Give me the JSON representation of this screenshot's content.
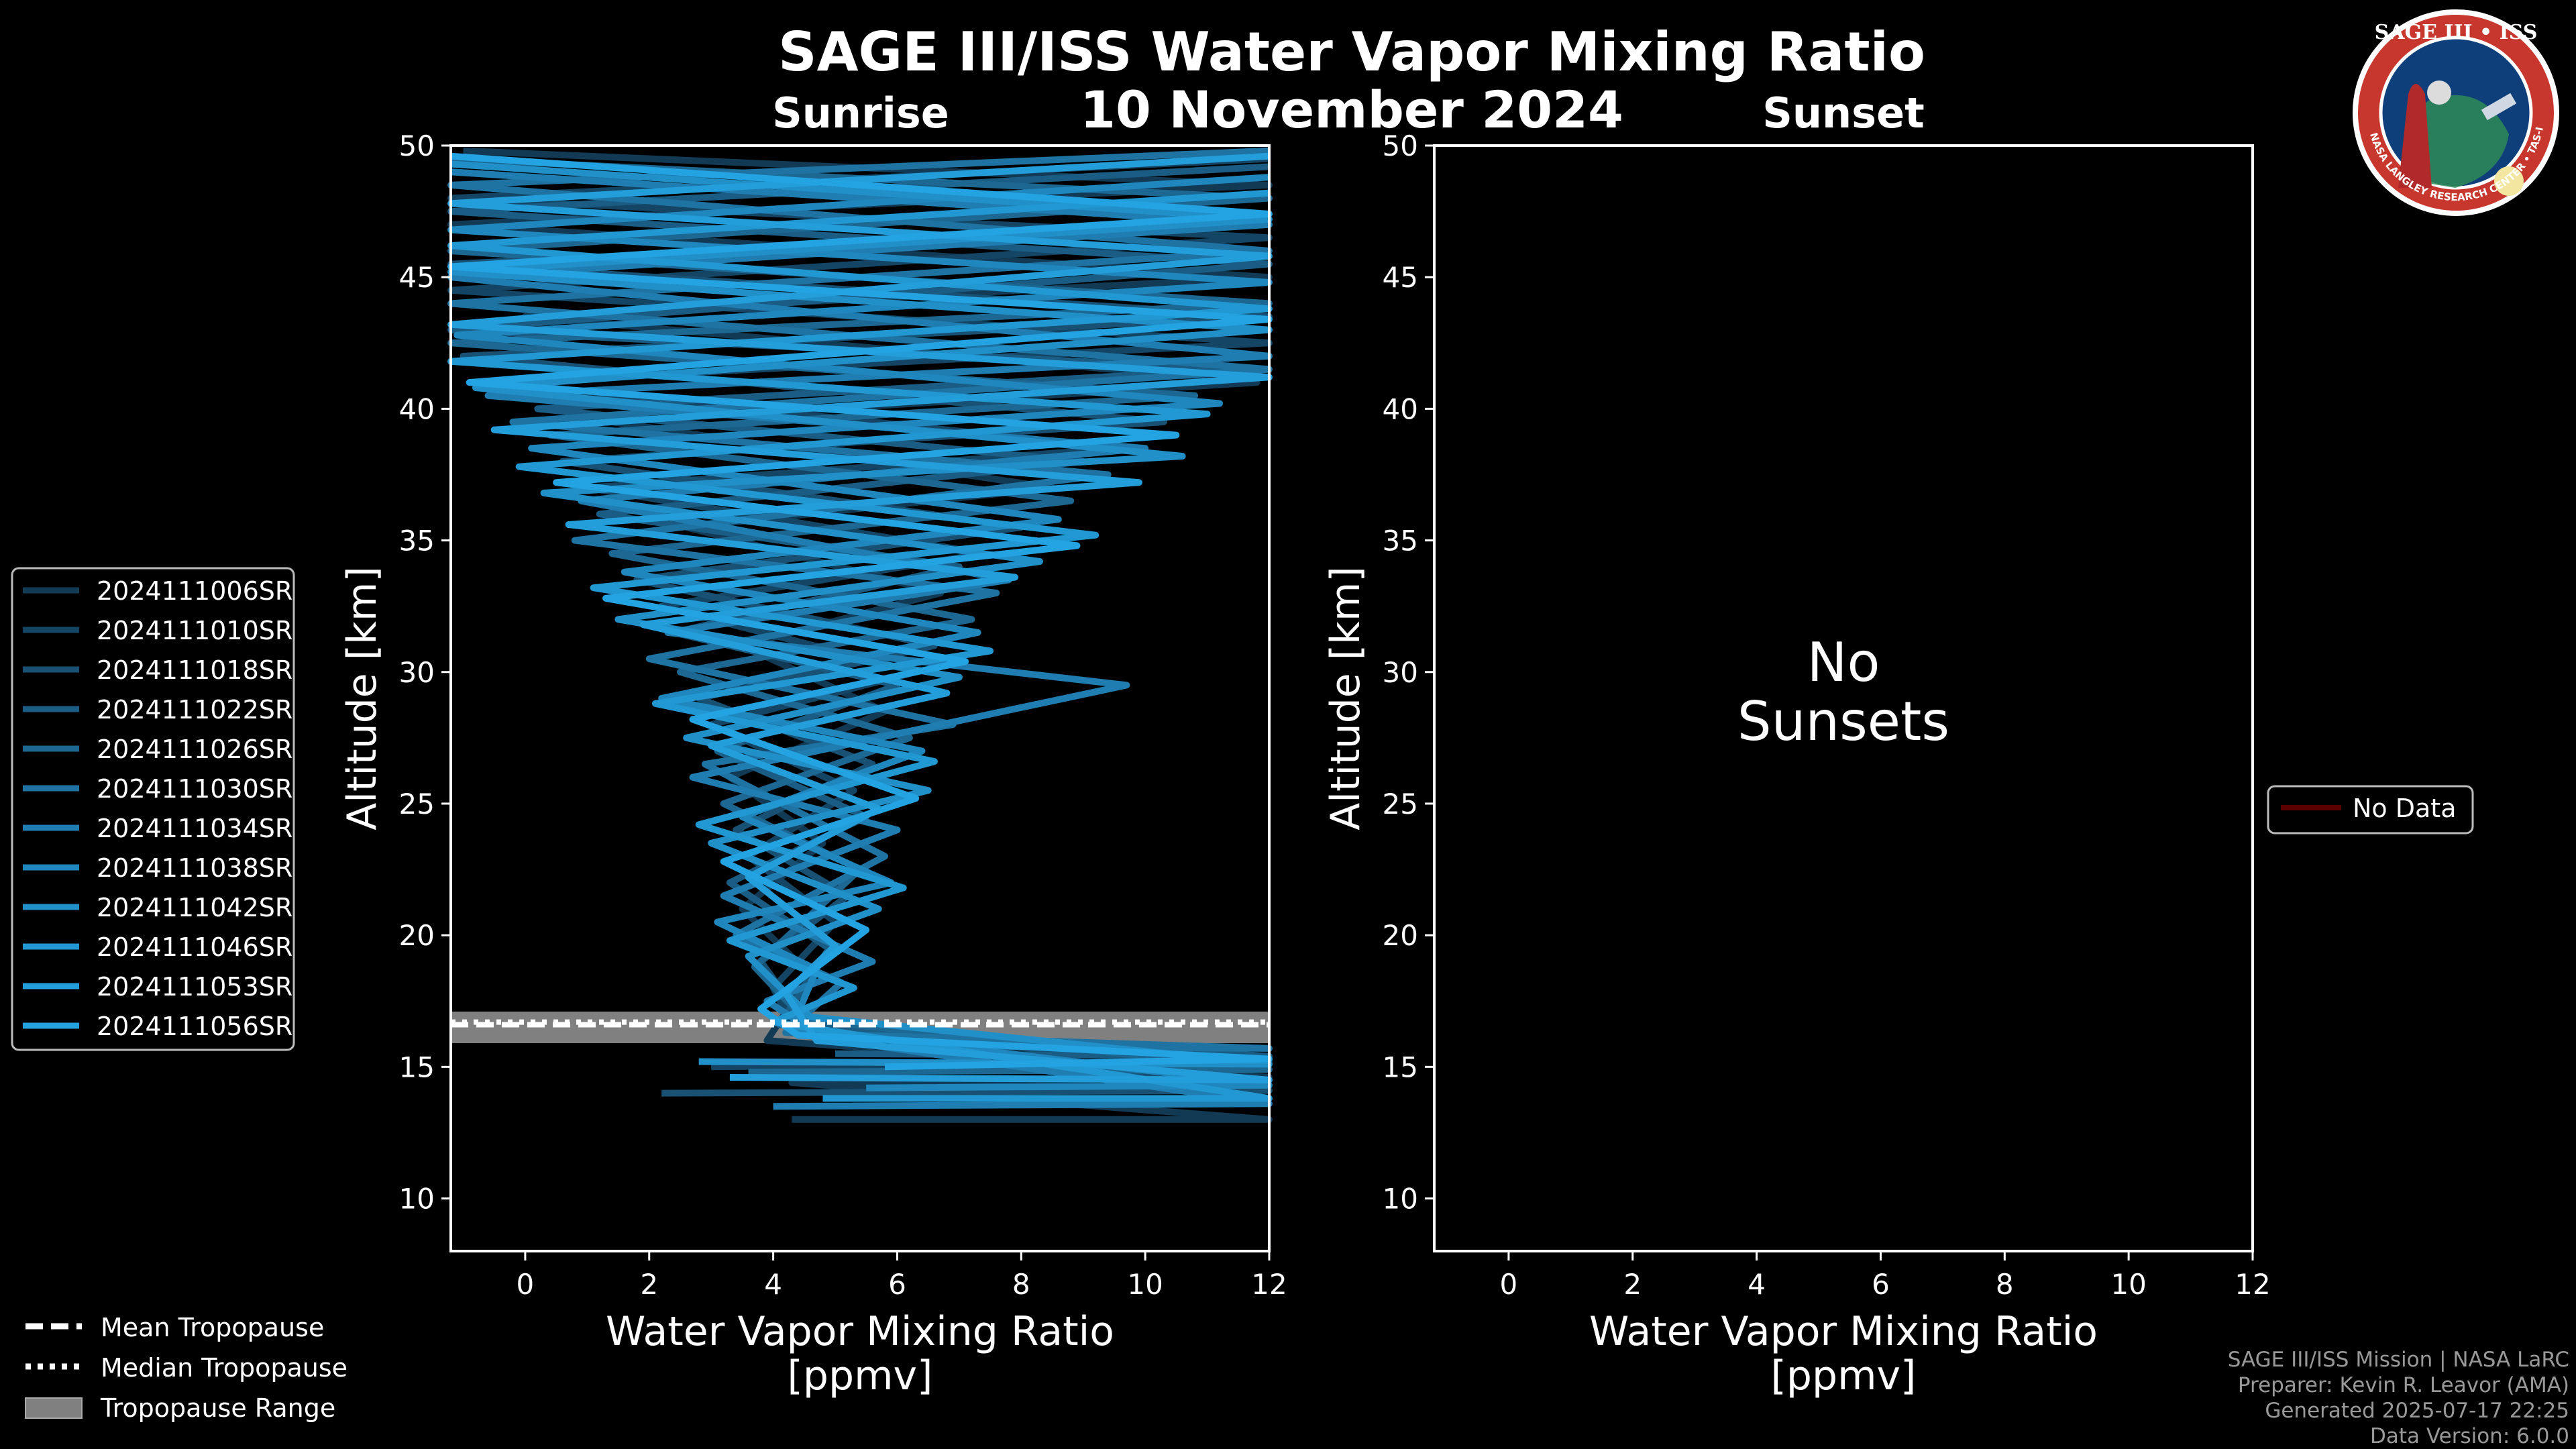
{
  "figure": {
    "title": "SAGE III/ISS Water Vapor Mixing Ratio",
    "date": "10 November 2024",
    "sunrise_label": "Sunrise",
    "sunset_label": "Sunset"
  },
  "logo": {
    "text_top": "SAGE III • ISS",
    "text_ring": "BALL • NASA LANGLEY RESEARCH CENTER • TAS-I • ESA",
    "colors": {
      "ring": "#c8372d",
      "inner": "#0f3f7a",
      "border": "#ffffff"
    }
  },
  "credits": [
    "SAGE III/ISS Mission | NASA LaRC",
    "Preparer: Kevin R. Leavor (AMA)",
    "Generated 2025-07-17 22:25",
    "Data Version: 6.0.0"
  ],
  "tropopause_legend": [
    {
      "label": "Mean Tropopause",
      "style": "dashed"
    },
    {
      "label": "Median Tropopause",
      "style": "dotted"
    },
    {
      "label": "Tropopause Range",
      "style": "patch"
    }
  ],
  "sunset_legend": [
    {
      "label": "No Data",
      "color": "#5a0000"
    }
  ],
  "chart_data": [
    {
      "type": "line",
      "panel": "sunrise",
      "xlabel": "Water Vapor Mixing Ratio\n[ppmv]",
      "ylabel": "Altitude [km]",
      "xlim": [
        -1.2,
        12
      ],
      "ylim": [
        8,
        50
      ],
      "xticks": [
        0,
        2,
        4,
        6,
        8,
        10,
        12
      ],
      "yticks": [
        10,
        15,
        20,
        25,
        30,
        35,
        40,
        45,
        50
      ],
      "tropopause": {
        "mean": 16.6,
        "median": 16.7,
        "range": [
          15.9,
          17.1
        ]
      },
      "series": [
        {
          "name": "2024111006SR",
          "color": "#123a55",
          "points": [
            [
              4.3,
              13.0
            ],
            [
              12,
              13.0
            ],
            [
              4.3,
              14.4
            ],
            [
              12,
              14.6
            ],
            [
              3.9,
              16.0
            ],
            [
              4.6,
              18.5
            ],
            [
              3.5,
              21.0
            ],
            [
              4.8,
              23.5
            ],
            [
              3.3,
              26.0
            ],
            [
              5.8,
              28.5
            ],
            [
              3.5,
              31.0
            ],
            [
              6.7,
              33.0
            ],
            [
              2.6,
              35.5
            ],
            [
              8.5,
              37.0
            ],
            [
              1.4,
              39.5
            ],
            [
              11.8,
              41.0
            ],
            [
              0.0,
              43.5
            ],
            [
              12,
              45.0
            ],
            [
              -1.2,
              47.0
            ],
            [
              12,
              48.5
            ],
            [
              -1.0,
              49.8
            ]
          ]
        },
        {
          "name": "2024111010SR",
          "color": "#154564",
          "points": [
            [
              3.0,
              15.0
            ],
            [
              12,
              15.2
            ],
            [
              4.4,
              16.2
            ],
            [
              4.0,
              18.0
            ],
            [
              5.0,
              20.5
            ],
            [
              3.6,
              23.0
            ],
            [
              5.3,
              25.5
            ],
            [
              3.0,
              28.0
            ],
            [
              6.3,
              30.0
            ],
            [
              2.2,
              32.5
            ],
            [
              7.4,
              34.5
            ],
            [
              1.0,
              37.0
            ],
            [
              9.6,
              38.5
            ],
            [
              -0.4,
              41.0
            ],
            [
              12,
              42.5
            ],
            [
              -1.2,
              44.5
            ],
            [
              12,
              46.5
            ],
            [
              -1.2,
              48.0
            ],
            [
              12,
              49.5
            ]
          ]
        },
        {
          "name": "2024111018SR",
          "color": "#185173",
          "points": [
            [
              2.2,
              14.0
            ],
            [
              12,
              14.1
            ],
            [
              4.6,
              16.4
            ],
            [
              3.8,
              19.0
            ],
            [
              5.2,
              21.5
            ],
            [
              3.4,
              24.0
            ],
            [
              5.6,
              26.5
            ],
            [
              2.8,
              29.0
            ],
            [
              6.6,
              31.0
            ],
            [
              1.8,
              33.5
            ],
            [
              8.0,
              35.5
            ],
            [
              0.6,
              38.0
            ],
            [
              10.3,
              39.5
            ],
            [
              -1.0,
              42.0
            ],
            [
              12,
              43.5
            ],
            [
              -1.2,
              45.5
            ],
            [
              12,
              47.0
            ],
            [
              -1.2,
              49.0
            ]
          ]
        },
        {
          "name": "2024111022SR",
          "color": "#1a5c83",
          "points": [
            [
              5.0,
              15.5
            ],
            [
              12,
              15.4
            ],
            [
              4.1,
              16.6
            ],
            [
              4.9,
              19.5
            ],
            [
              3.3,
              22.0
            ],
            [
              5.5,
              24.5
            ],
            [
              3.1,
              27.0
            ],
            [
              6.0,
              29.5
            ],
            [
              2.4,
              31.5
            ],
            [
              7.0,
              34.0
            ],
            [
              1.2,
              36.0
            ],
            [
              9.0,
              38.0
            ],
            [
              0.2,
              40.0
            ],
            [
              11.5,
              41.5
            ],
            [
              -1.2,
              43.0
            ],
            [
              12,
              45.5
            ],
            [
              -1.2,
              47.5
            ],
            [
              12,
              49.2
            ]
          ]
        },
        {
          "name": "2024111026SR",
          "color": "#1c6893",
          "points": [
            [
              3.6,
              14.8
            ],
            [
              12,
              14.9
            ],
            [
              4.5,
              16.8
            ],
            [
              3.7,
              18.8
            ],
            [
              5.4,
              22.5
            ],
            [
              3.2,
              25.0
            ],
            [
              6.2,
              27.5
            ],
            [
              2.5,
              30.0
            ],
            [
              7.2,
              32.0
            ],
            [
              1.4,
              34.5
            ],
            [
              8.8,
              36.5
            ],
            [
              0.4,
              39.0
            ],
            [
              10.8,
              40.5
            ],
            [
              -1.2,
              42.5
            ],
            [
              12,
              44.0
            ],
            [
              -1.2,
              46.0
            ],
            [
              12,
              48.0
            ],
            [
              -1.2,
              49.5
            ]
          ]
        },
        {
          "name": "2024111030SR",
          "color": "#1e73a3",
          "points": [
            [
              6.0,
              15.8
            ],
            [
              12,
              15.7
            ],
            [
              4.2,
              16.3
            ],
            [
              5.1,
              18.2
            ],
            [
              3.4,
              20.0
            ],
            [
              5.8,
              23.0
            ],
            [
              2.9,
              26.5
            ],
            [
              6.9,
              28.0
            ],
            [
              2.0,
              30.5
            ],
            [
              7.6,
              33.0
            ],
            [
              0.8,
              35.0
            ],
            [
              9.4,
              37.5
            ],
            [
              -0.2,
              39.5
            ],
            [
              12,
              41.5
            ],
            [
              -1.2,
              44.0
            ],
            [
              12,
              46.0
            ],
            [
              -1.2,
              48.5
            ],
            [
              12,
              49.8
            ]
          ]
        },
        {
          "name": "2024111034SR",
          "color": "#1f7db1",
          "points": [
            [
              4.0,
              13.5
            ],
            [
              12,
              13.6
            ],
            [
              4.8,
              16.1
            ],
            [
              3.9,
              17.5
            ],
            [
              5.6,
              19.0
            ],
            [
              3.2,
              21.5
            ],
            [
              6.0,
              24.0
            ],
            [
              2.7,
              26.0
            ],
            [
              9.7,
              29.5
            ],
            [
              2.3,
              31.5
            ],
            [
              7.8,
              33.5
            ],
            [
              0.9,
              36.5
            ],
            [
              10.0,
              38.5
            ],
            [
              -0.6,
              40.5
            ],
            [
              12,
              42.0
            ],
            [
              -1.2,
              45.0
            ],
            [
              12,
              47.0
            ],
            [
              -1.2,
              49.0
            ]
          ]
        },
        {
          "name": "2024111038SR",
          "color": "#2087be",
          "points": [
            [
              5.5,
              14.2
            ],
            [
              12,
              14.3
            ],
            [
              4.3,
              16.5
            ],
            [
              4.7,
              18.7
            ],
            [
              3.1,
              20.5
            ],
            [
              5.9,
              22.0
            ],
            [
              3.5,
              24.5
            ],
            [
              6.4,
              27.0
            ],
            [
              2.2,
              29.0
            ],
            [
              7.3,
              31.5
            ],
            [
              1.6,
              33.8
            ],
            [
              8.6,
              35.8
            ],
            [
              0.1,
              38.5
            ],
            [
              11.2,
              40.2
            ],
            [
              -1.1,
              42.8
            ],
            [
              12,
              44.8
            ],
            [
              -1.2,
              46.8
            ],
            [
              12,
              48.8
            ]
          ]
        },
        {
          "name": "2024111042SR",
          "color": "#2190c9",
          "points": [
            [
              2.8,
              15.2
            ],
            [
              12,
              15.1
            ],
            [
              4.6,
              16.9
            ],
            [
              3.6,
              19.2
            ],
            [
              5.7,
              21.0
            ],
            [
              3.0,
              23.5
            ],
            [
              6.5,
              25.5
            ],
            [
              2.6,
              27.5
            ],
            [
              7.0,
              29.8
            ],
            [
              1.5,
              32.0
            ],
            [
              8.3,
              34.2
            ],
            [
              0.3,
              36.8
            ],
            [
              10.6,
              38.2
            ],
            [
              -0.8,
              40.8
            ],
            [
              12,
              43.0
            ],
            [
              -1.2,
              45.2
            ],
            [
              12,
              47.2
            ],
            [
              -1.2,
              49.3
            ]
          ]
        },
        {
          "name": "2024111046SR",
          "color": "#2298d3",
          "points": [
            [
              4.8,
              13.8
            ],
            [
              12,
              13.8
            ],
            [
              4.0,
              16.7
            ],
            [
              5.3,
              18.0
            ],
            [
              3.3,
              19.8
            ],
            [
              6.1,
              21.8
            ],
            [
              2.8,
              24.2
            ],
            [
              6.6,
              26.6
            ],
            [
              2.1,
              28.8
            ],
            [
              7.5,
              30.8
            ],
            [
              1.1,
              33.2
            ],
            [
              9.2,
              35.2
            ],
            [
              -0.1,
              37.8
            ],
            [
              11.0,
              39.8
            ],
            [
              -1.2,
              41.8
            ],
            [
              12,
              43.8
            ],
            [
              -1.2,
              46.2
            ],
            [
              12,
              48.2
            ]
          ]
        },
        {
          "name": "2024111053SR",
          "color": "#239edb",
          "points": [
            [
              3.3,
              14.6
            ],
            [
              12,
              14.5
            ],
            [
              4.7,
              16.0
            ],
            [
              4.2,
              17.8
            ],
            [
              5.0,
              19.6
            ],
            [
              3.6,
              22.2
            ],
            [
              5.7,
              24.8
            ],
            [
              3.0,
              27.2
            ],
            [
              6.8,
              29.2
            ],
            [
              1.9,
              31.8
            ],
            [
              7.9,
              33.6
            ],
            [
              0.7,
              35.6
            ],
            [
              9.9,
              37.2
            ],
            [
              -0.5,
              39.2
            ],
            [
              12,
              41.2
            ],
            [
              -1.2,
              43.2
            ],
            [
              12,
              45.8
            ],
            [
              -1.2,
              47.8
            ],
            [
              12,
              49.6
            ]
          ]
        },
        {
          "name": "2024111056SR",
          "color": "#24a3e2",
          "points": [
            [
              5.8,
              15.0
            ],
            [
              12,
              15.3
            ],
            [
              4.4,
              16.2
            ],
            [
              3.8,
              17.2
            ],
            [
              5.5,
              20.2
            ],
            [
              3.2,
              22.8
            ],
            [
              6.3,
              25.2
            ],
            [
              2.7,
              28.2
            ],
            [
              7.1,
              30.4
            ],
            [
              1.3,
              32.8
            ],
            [
              8.9,
              34.8
            ],
            [
              0.5,
              37.2
            ],
            [
              10.5,
              39.0
            ],
            [
              -0.9,
              41.0
            ],
            [
              12,
              43.4
            ],
            [
              -1.2,
              45.4
            ],
            [
              12,
              47.4
            ],
            [
              -1.2,
              49.6
            ]
          ]
        }
      ]
    },
    {
      "type": "line",
      "panel": "sunset",
      "xlabel": "Water Vapor Mixing Ratio\n[ppmv]",
      "ylabel": "Altitude [km]",
      "xlim": [
        -1.2,
        12
      ],
      "ylim": [
        8,
        50
      ],
      "xticks": [
        0,
        2,
        4,
        6,
        8,
        10,
        12
      ],
      "yticks": [
        10,
        15,
        20,
        25,
        30,
        35,
        40,
        45,
        50
      ],
      "annotation": "No\nSunsets",
      "series": []
    }
  ]
}
